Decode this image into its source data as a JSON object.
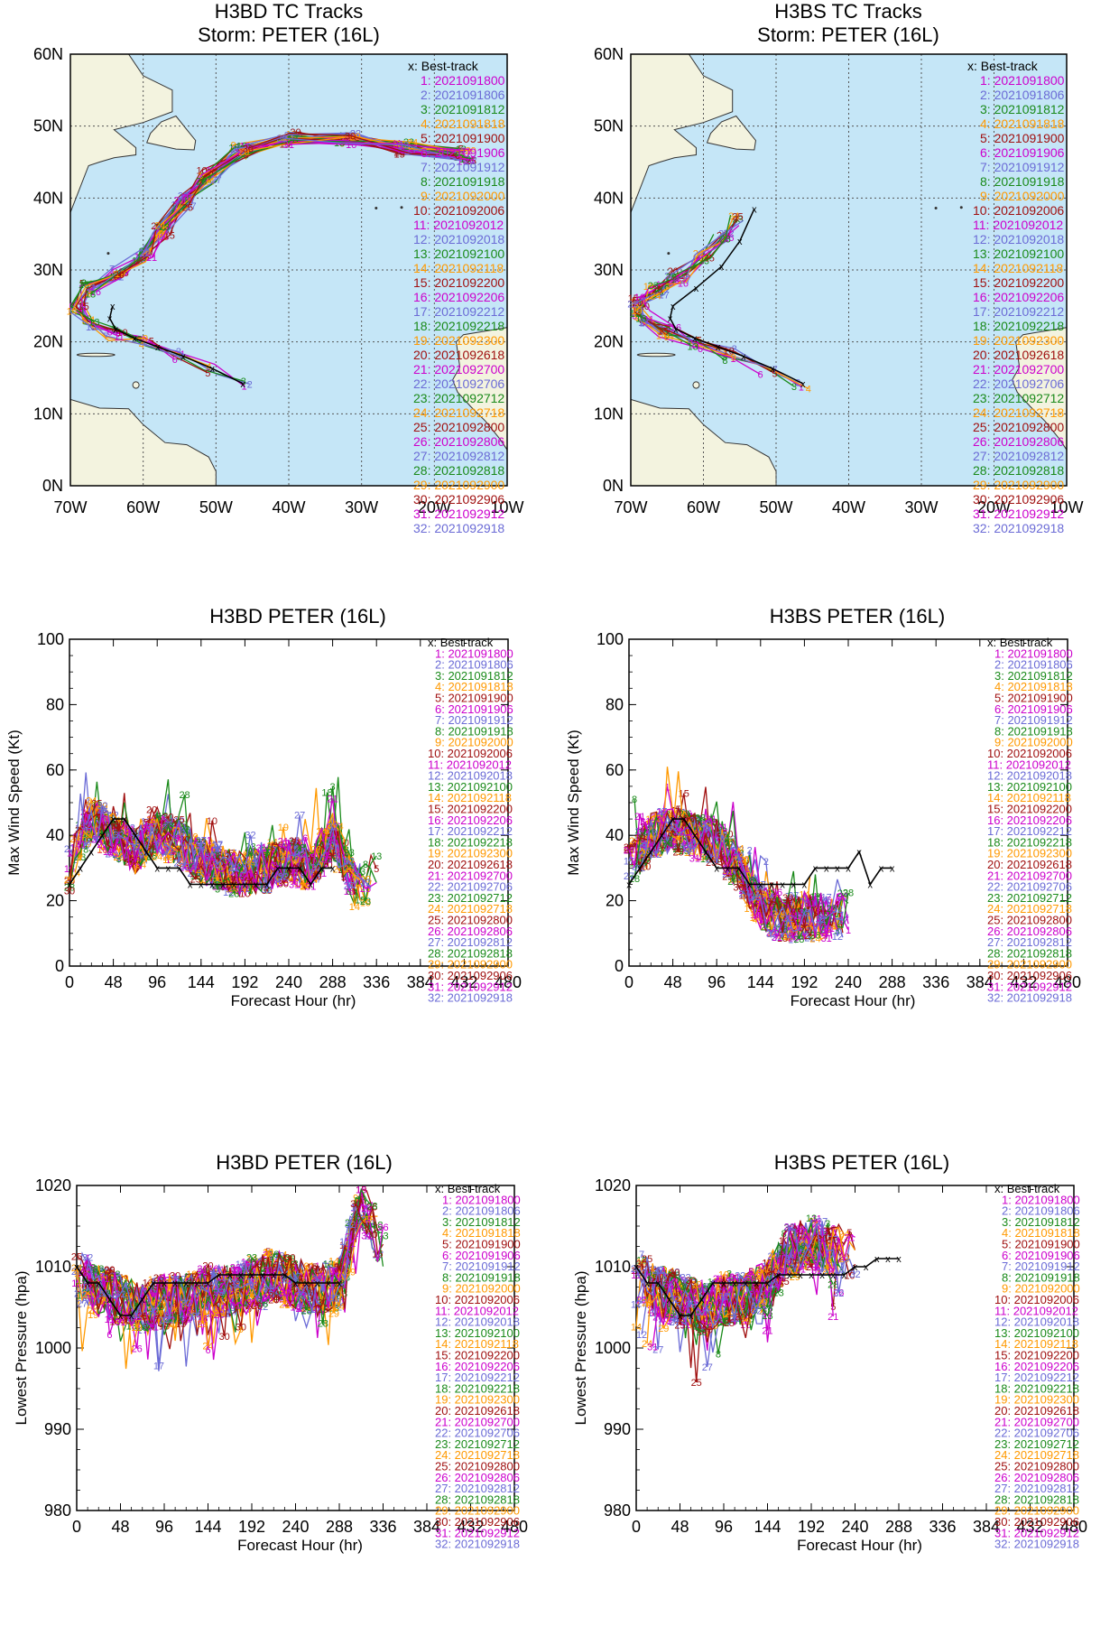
{
  "panels": {
    "map_left": {
      "title1": "H3BD TC Tracks",
      "title2": "Storm: PETER (16L)"
    },
    "map_right": {
      "title1": "H3BS TC Tracks",
      "title2": "Storm: PETER (16L)"
    },
    "wind_left": {
      "title": "H3BD  PETER (16L)"
    },
    "wind_right": {
      "title": "H3BS  PETER (16L)"
    },
    "pres_left": {
      "title": "H3BD  PETER (16L)"
    },
    "pres_right": {
      "title": "H3BS  PETER (16L)"
    }
  },
  "legend": {
    "best": "x: Best-track",
    "entries": [
      {
        "label": "1: 2021091800",
        "color": "#cc00cc"
      },
      {
        "label": "2: 2021091806",
        "color": "#6b6bd6"
      },
      {
        "label": "3: 2021091812",
        "color": "#1a8a1a"
      },
      {
        "label": "4: 2021091818",
        "color": "#ff9900"
      },
      {
        "label": "5: 2021091900",
        "color": "#a01010"
      },
      {
        "label": "6: 2021091906",
        "color": "#cc00cc"
      },
      {
        "label": "7: 2021091912",
        "color": "#6b6bd6"
      },
      {
        "label": "8: 2021091918",
        "color": "#1a8a1a"
      },
      {
        "label": "9: 2021092000",
        "color": "#ff9900"
      },
      {
        "label": "10: 2021092006",
        "color": "#a01010"
      },
      {
        "label": "11: 2021092012",
        "color": "#cc00cc"
      },
      {
        "label": "12: 2021092018",
        "color": "#6b6bd6"
      },
      {
        "label": "13: 2021092100",
        "color": "#1a8a1a"
      },
      {
        "label": "14: 2021092118",
        "color": "#ff9900"
      },
      {
        "label": "15: 2021092200",
        "color": "#a01010"
      },
      {
        "label": "16: 2021092206",
        "color": "#cc00cc"
      },
      {
        "label": "17: 2021092212",
        "color": "#6b6bd6"
      },
      {
        "label": "18: 2021092218",
        "color": "#1a8a1a"
      },
      {
        "label": "19: 2021092300",
        "color": "#ff9900"
      },
      {
        "label": "20: 2021092618",
        "color": "#a01010"
      },
      {
        "label": "21: 2021092700",
        "color": "#cc00cc"
      },
      {
        "label": "22: 2021092706",
        "color": "#6b6bd6"
      },
      {
        "label": "23: 2021092712",
        "color": "#1a8a1a"
      },
      {
        "label": "24: 2021092718",
        "color": "#ff9900"
      },
      {
        "label": "25: 2021092800",
        "color": "#a01010"
      },
      {
        "label": "26: 2021092806",
        "color": "#cc00cc"
      },
      {
        "label": "27: 2021092812",
        "color": "#6b6bd6"
      },
      {
        "label": "28: 2021092818",
        "color": "#1a8a1a"
      },
      {
        "label": "29: 2021092900",
        "color": "#ff9900"
      },
      {
        "label": "30: 2021092906",
        "color": "#a01010"
      },
      {
        "label": "31: 2021092912",
        "color": "#cc00cc"
      },
      {
        "label": "32: 2021092918",
        "color": "#6b6bd6"
      }
    ]
  },
  "chart_data": [
    {
      "id": "map_left",
      "type": "scatter",
      "title": "H3BD TC Tracks",
      "subtitle": "Storm: PETER (16L)",
      "x_ticks": [
        "70W",
        "60W",
        "50W",
        "40W",
        "30W",
        "20W",
        "10W"
      ],
      "y_ticks": [
        "0N",
        "10N",
        "20N",
        "30N",
        "40N",
        "50N",
        "60N"
      ],
      "xlim": [
        -70,
        -10
      ],
      "ylim": [
        0,
        60
      ],
      "grid": true,
      "best_track": [
        [
          -46.3,
          14.2
        ],
        [
          -50.5,
          16.3
        ],
        [
          -54.5,
          18.0
        ],
        [
          -58.0,
          19.3
        ],
        [
          -61.2,
          20.5
        ],
        [
          -63.8,
          21.8
        ],
        [
          -64.6,
          23.3
        ],
        [
          -64.2,
          25.0
        ]
      ],
      "model_track": [
        [
          -46.5,
          14.2
        ],
        [
          -50.5,
          16.0
        ],
        [
          -55,
          18
        ],
        [
          -60,
          19.8
        ],
        [
          -64,
          21.0
        ],
        [
          -67.5,
          22.5
        ],
        [
          -69.3,
          25.0
        ],
        [
          -67.5,
          27.5
        ],
        [
          -63.5,
          29.5
        ],
        [
          -59.8,
          32.0
        ],
        [
          -57.5,
          35.5
        ],
        [
          -54.5,
          39.5
        ],
        [
          -51,
          43
        ],
        [
          -46.5,
          46.5
        ],
        [
          -40,
          48.3
        ],
        [
          -32,
          48.2
        ],
        [
          -24,
          47.0
        ],
        [
          -16,
          46.0
        ]
      ]
    },
    {
      "id": "map_right",
      "type": "scatter",
      "title": "H3BS TC Tracks",
      "subtitle": "Storm: PETER (16L)",
      "x_ticks": [
        "70W",
        "60W",
        "50W",
        "40W",
        "30W",
        "20W",
        "10W"
      ],
      "y_ticks": [
        "0N",
        "10N",
        "20N",
        "30N",
        "40N",
        "50N",
        "60N"
      ],
      "xlim": [
        -70,
        -10
      ],
      "ylim": [
        0,
        60
      ],
      "grid": true,
      "best_track": [
        [
          -46.3,
          14.2
        ],
        [
          -50.5,
          16.3
        ],
        [
          -54.5,
          18.0
        ],
        [
          -58.0,
          19.3
        ],
        [
          -61.2,
          20.5
        ],
        [
          -63.8,
          21.8
        ],
        [
          -64.6,
          23.3
        ],
        [
          -64.2,
          25.0
        ],
        [
          -61.0,
          27.5
        ],
        [
          -57.5,
          30.5
        ],
        [
          -55.0,
          34.0
        ],
        [
          -53.0,
          38.5
        ]
      ],
      "model_track": [
        [
          -46.5,
          14.2
        ],
        [
          -51,
          16.2
        ],
        [
          -56,
          18.3
        ],
        [
          -61,
          20.0
        ],
        [
          -65,
          21.5
        ],
        [
          -68.5,
          23.5
        ],
        [
          -69,
          25.5
        ],
        [
          -66.5,
          27.2
        ],
        [
          -63.5,
          29.0
        ],
        [
          -60,
          31.5
        ],
        [
          -57.5,
          34.5
        ],
        [
          -55.5,
          37.0
        ]
      ]
    },
    {
      "id": "wind_left",
      "type": "line",
      "title": "H3BD  PETER (16L)",
      "xlabel": "Forecast Hour (hr)",
      "ylabel": "Max Wind Speed (Kt)",
      "x_ticks": [
        0,
        48,
        96,
        144,
        192,
        240,
        288,
        336,
        384,
        432,
        480
      ],
      "y_ticks": [
        0,
        20,
        40,
        60,
        80,
        100
      ],
      "xlim": [
        0,
        480
      ],
      "ylim": [
        0,
        100
      ],
      "best_track": {
        "x": [
          0,
          12,
          24,
          36,
          48,
          60,
          72,
          84,
          96,
          108,
          120,
          132,
          144,
          156,
          168,
          180,
          192,
          204,
          216,
          228,
          240,
          252,
          264,
          276,
          288
        ],
        "y": [
          25,
          30,
          35,
          40,
          45,
          45,
          40,
          35,
          30,
          30,
          30,
          25,
          25,
          25,
          25,
          25,
          25,
          25,
          25,
          30,
          30,
          30,
          25,
          30,
          30
        ]
      },
      "model_envelope": {
        "x": [
          0,
          24,
          48,
          72,
          96,
          120,
          144,
          168,
          192,
          216,
          240,
          264,
          288,
          312,
          336
        ],
        "y": [
          30,
          45,
          40,
          35,
          40,
          38,
          32,
          30,
          28,
          30,
          32,
          30,
          40,
          25,
          28
        ]
      }
    },
    {
      "id": "wind_right",
      "type": "line",
      "title": "H3BS  PETER (16L)",
      "xlabel": "Forecast Hour (hr)",
      "ylabel": "Max Wind Speed (Kt)",
      "x_ticks": [
        0,
        48,
        96,
        144,
        192,
        240,
        288,
        336,
        384,
        432,
        480
      ],
      "y_ticks": [
        0,
        20,
        40,
        60,
        80,
        100
      ],
      "xlim": [
        0,
        480
      ],
      "ylim": [
        0,
        100
      ],
      "best_track": {
        "x": [
          0,
          12,
          24,
          36,
          48,
          60,
          72,
          84,
          96,
          108,
          120,
          132,
          144,
          156,
          168,
          180,
          192,
          204,
          216,
          228,
          240,
          252,
          264,
          276,
          288
        ],
        "y": [
          25,
          30,
          35,
          40,
          45,
          45,
          40,
          35,
          30,
          30,
          30,
          25,
          25,
          25,
          25,
          25,
          25,
          30,
          30,
          30,
          30,
          35,
          25,
          30,
          30
        ]
      },
      "model_envelope": {
        "x": [
          0,
          24,
          48,
          72,
          96,
          120,
          144,
          168,
          192,
          216,
          240
        ],
        "y": [
          30,
          40,
          42,
          40,
          38,
          30,
          18,
          15,
          15,
          15,
          16
        ]
      }
    },
    {
      "id": "pres_left",
      "type": "line",
      "title": "H3BD  PETER (16L)",
      "xlabel": "Forecast Hour (hr)",
      "ylabel": "Lowest Pressure (hpa)",
      "x_ticks": [
        0,
        48,
        96,
        144,
        192,
        240,
        288,
        336,
        384,
        432,
        480
      ],
      "y_ticks": [
        980,
        990,
        1000,
        1010,
        1020
      ],
      "xlim": [
        0,
        480
      ],
      "ylim": [
        980,
        1020
      ],
      "best_track": {
        "x": [
          0,
          12,
          24,
          36,
          48,
          60,
          72,
          84,
          96,
          108,
          120,
          132,
          144,
          156,
          168,
          180,
          192,
          204,
          216,
          228,
          240,
          252,
          264,
          276,
          288
        ],
        "y": [
          1010,
          1008,
          1008,
          1006,
          1004,
          1004,
          1006,
          1008,
          1008,
          1008,
          1008,
          1008,
          1008,
          1009,
          1009,
          1009,
          1009,
          1009,
          1009,
          1009,
          1008,
          1008,
          1008,
          1008,
          1008
        ]
      },
      "model_envelope": {
        "x": [
          0,
          24,
          48,
          72,
          96,
          120,
          144,
          168,
          192,
          216,
          240,
          264,
          288,
          312,
          336
        ],
        "y": [
          1009,
          1007,
          1006,
          1005,
          1006,
          1006,
          1007,
          1007,
          1008,
          1009,
          1008,
          1007,
          1008,
          1018,
          1012
        ]
      }
    },
    {
      "id": "pres_right",
      "type": "line",
      "title": "H3BS  PETER (16L)",
      "xlabel": "Forecast Hour (hr)",
      "ylabel": "Lowest Pressure (hpa)",
      "x_ticks": [
        0,
        48,
        96,
        144,
        192,
        240,
        288,
        336,
        384,
        432,
        480
      ],
      "y_ticks": [
        980,
        990,
        1000,
        1010,
        1020
      ],
      "xlim": [
        0,
        480
      ],
      "ylim": [
        980,
        1020
      ],
      "best_track": {
        "x": [
          0,
          12,
          24,
          36,
          48,
          60,
          72,
          84,
          96,
          108,
          120,
          132,
          144,
          156,
          168,
          180,
          192,
          204,
          216,
          228,
          240,
          252,
          264,
          276,
          288
        ],
        "y": [
          1010,
          1008,
          1008,
          1006,
          1004,
          1004,
          1006,
          1008,
          1008,
          1008,
          1008,
          1008,
          1008,
          1009,
          1009,
          1009,
          1009,
          1009,
          1009,
          1009,
          1010,
          1010,
          1011,
          1011,
          1011
        ]
      },
      "model_envelope": {
        "x": [
          0,
          24,
          48,
          72,
          96,
          120,
          144,
          168,
          192,
          216,
          240
        ],
        "y": [
          1009,
          1007,
          1006,
          1005,
          1006,
          1006,
          1008,
          1012,
          1013,
          1012,
          1012
        ]
      }
    }
  ]
}
